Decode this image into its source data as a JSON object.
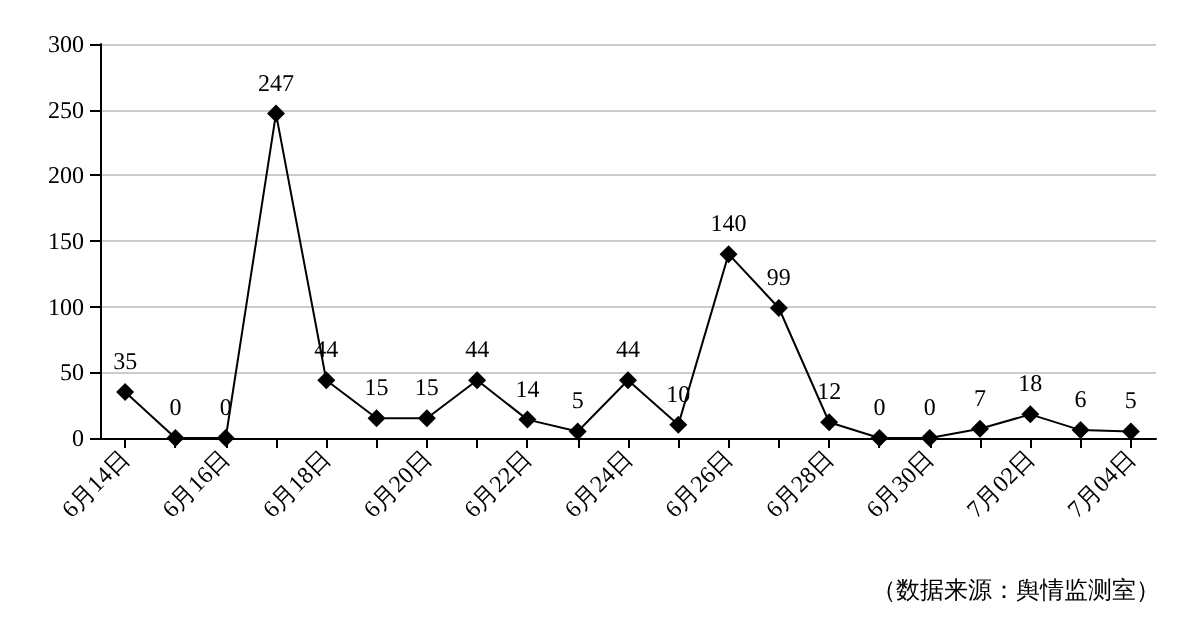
{
  "chart_data": {
    "type": "line",
    "categories": [
      "6月14日",
      null,
      "6月16日",
      null,
      "6月18日",
      null,
      "6月20日",
      null,
      "6月22日",
      null,
      "6月24日",
      null,
      "6月26日",
      null,
      "6月28日",
      null,
      "6月30日",
      null,
      "7月02日",
      null,
      "7月04日"
    ],
    "series": [
      {
        "color": "#000000",
        "values": [
          35,
          0,
          0,
          247,
          44,
          15,
          15,
          44,
          14,
          5,
          44,
          10,
          140,
          99,
          12,
          0,
          0,
          7,
          18,
          6,
          5
        ]
      }
    ],
    "ylim": [
      0,
      300
    ],
    "yticks": [
      0,
      50,
      100,
      150,
      200,
      250,
      300
    ],
    "grid": "y",
    "marker": "diamond",
    "data_labels": true,
    "annotations": [
      "（数据来源：舆情监测室）"
    ]
  }
}
